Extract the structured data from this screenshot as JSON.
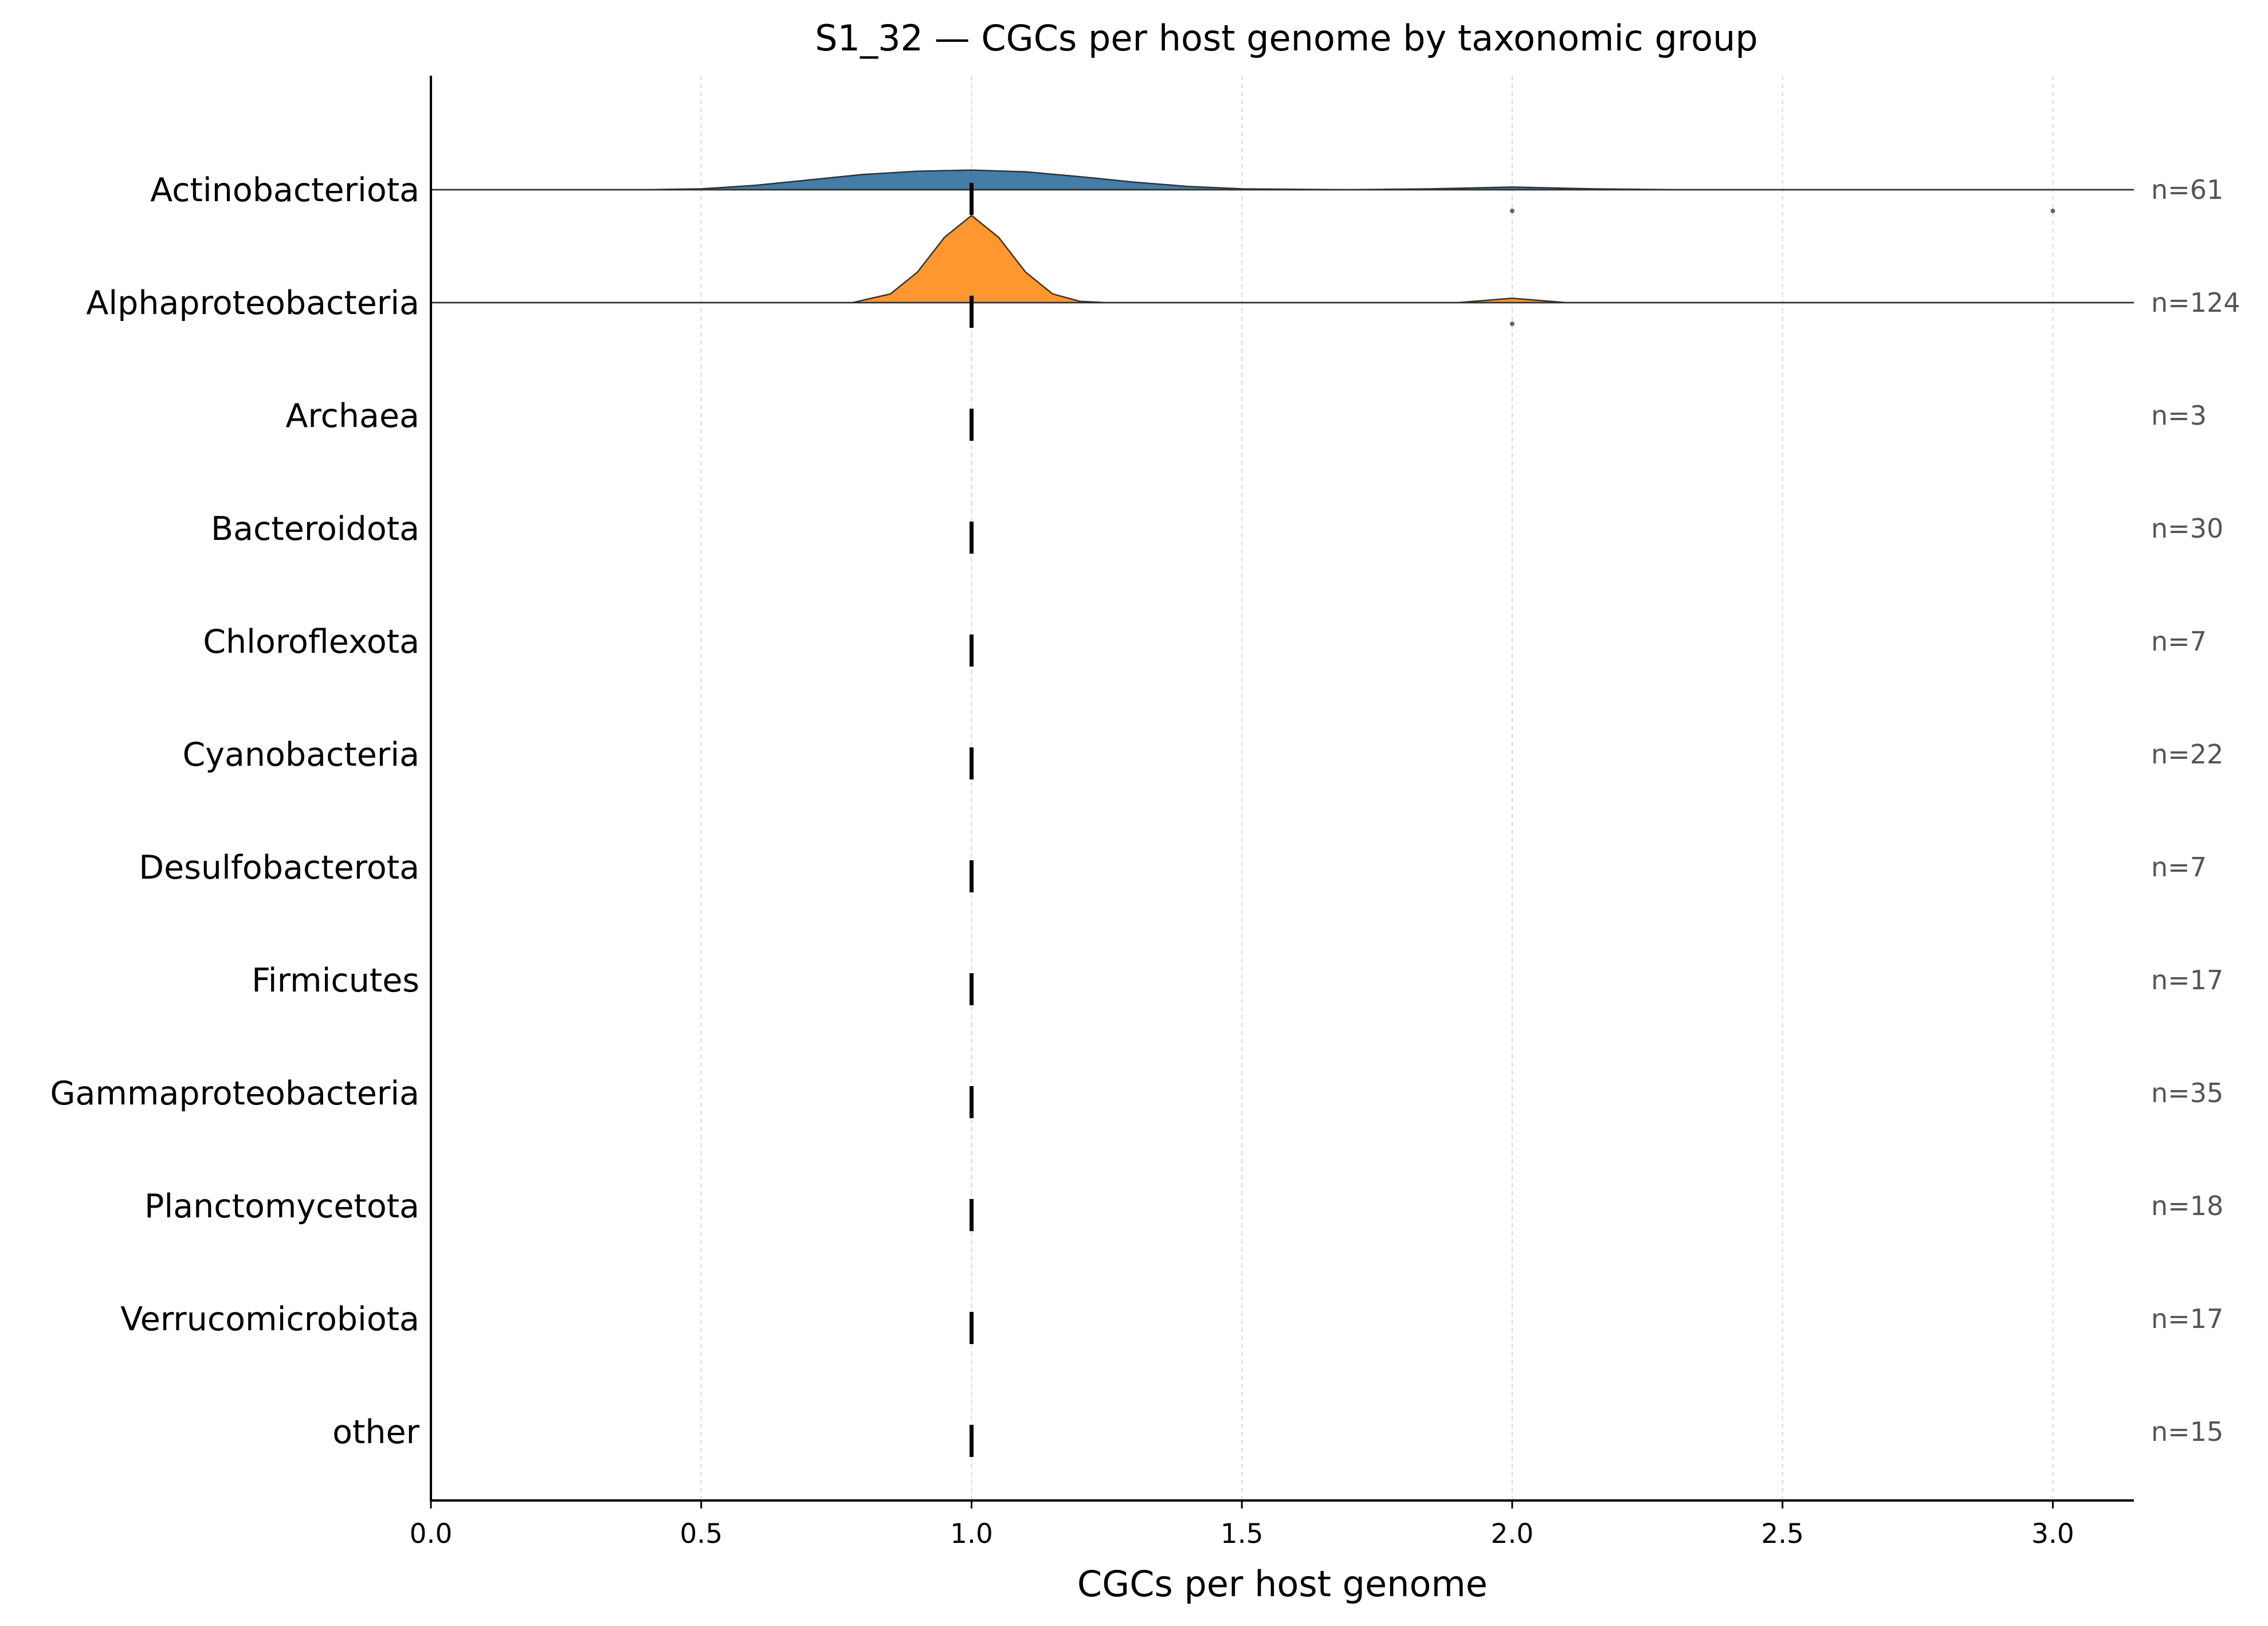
{
  "chart_data": {
    "type": "ridgeline",
    "title": "S1_32 — CGCs per host genome by taxonomic group",
    "xlabel": "CGCs per host genome",
    "ylabel": "",
    "xlim": [
      0,
      3.15
    ],
    "xticks": [
      "0.0",
      "0.5",
      "1.0",
      "1.5",
      "2.0",
      "2.5",
      "3.0"
    ],
    "grid": "vertical dashed",
    "median_marker": 1.0,
    "groups": [
      {
        "name": "Actinobacteriota",
        "n_label": "n=61",
        "color": "#2f6f9f",
        "density": [
          [
            0.0,
            0.0
          ],
          [
            0.4,
            0.0
          ],
          [
            0.5,
            0.004
          ],
          [
            0.6,
            0.02
          ],
          [
            0.7,
            0.045
          ],
          [
            0.8,
            0.07
          ],
          [
            0.9,
            0.085
          ],
          [
            1.0,
            0.09
          ],
          [
            1.1,
            0.082
          ],
          [
            1.2,
            0.06
          ],
          [
            1.3,
            0.035
          ],
          [
            1.4,
            0.015
          ],
          [
            1.5,
            0.004
          ],
          [
            1.7,
            0.0
          ],
          [
            1.85,
            0.004
          ],
          [
            2.0,
            0.012
          ],
          [
            2.15,
            0.004
          ],
          [
            2.3,
            0.0
          ],
          [
            3.15,
            0.0
          ]
        ],
        "outliers": [
          2.0,
          3.0
        ]
      },
      {
        "name": "Alphaproteobacteria",
        "n_label": "n=124",
        "color": "#ff8c1a",
        "density": [
          [
            0.0,
            0.0
          ],
          [
            0.78,
            0.0
          ],
          [
            0.85,
            0.04
          ],
          [
            0.9,
            0.14
          ],
          [
            0.95,
            0.3
          ],
          [
            1.0,
            0.4
          ],
          [
            1.05,
            0.3
          ],
          [
            1.1,
            0.14
          ],
          [
            1.15,
            0.04
          ],
          [
            1.2,
            0.006
          ],
          [
            1.25,
            0.0
          ],
          [
            1.9,
            0.0
          ],
          [
            2.0,
            0.02
          ],
          [
            2.1,
            0.0
          ],
          [
            3.15,
            0.0
          ]
        ],
        "outliers": [
          2.0
        ]
      },
      {
        "name": "Archaea",
        "n_label": "n=3",
        "color": "#2ca02c",
        "density": [],
        "outliers": []
      },
      {
        "name": "Bacteroidota",
        "n_label": "n=30",
        "color": "#d62728",
        "density": [],
        "outliers": []
      },
      {
        "name": "Chloroflexota",
        "n_label": "n=7",
        "color": "#9467bd",
        "density": [],
        "outliers": []
      },
      {
        "name": "Cyanobacteria",
        "n_label": "n=22",
        "color": "#8c564b",
        "density": [],
        "outliers": []
      },
      {
        "name": "Desulfobacterota",
        "n_label": "n=7",
        "color": "#e377c2",
        "density": [],
        "outliers": []
      },
      {
        "name": "Firmicutes",
        "n_label": "n=17",
        "color": "#7f7f7f",
        "density": [],
        "outliers": []
      },
      {
        "name": "Gammaproteobacteria",
        "n_label": "n=35",
        "color": "#bcbd22",
        "density": [],
        "outliers": []
      },
      {
        "name": "Planctomycetota",
        "n_label": "n=18",
        "color": "#17becf",
        "density": [],
        "outliers": []
      },
      {
        "name": "Verrucomicrobiota",
        "n_label": "n=17",
        "color": "#1f77b4",
        "density": [],
        "outliers": []
      },
      {
        "name": "other",
        "n_label": "n=15",
        "color": "#ff7f0e",
        "density": [],
        "outliers": []
      }
    ]
  }
}
